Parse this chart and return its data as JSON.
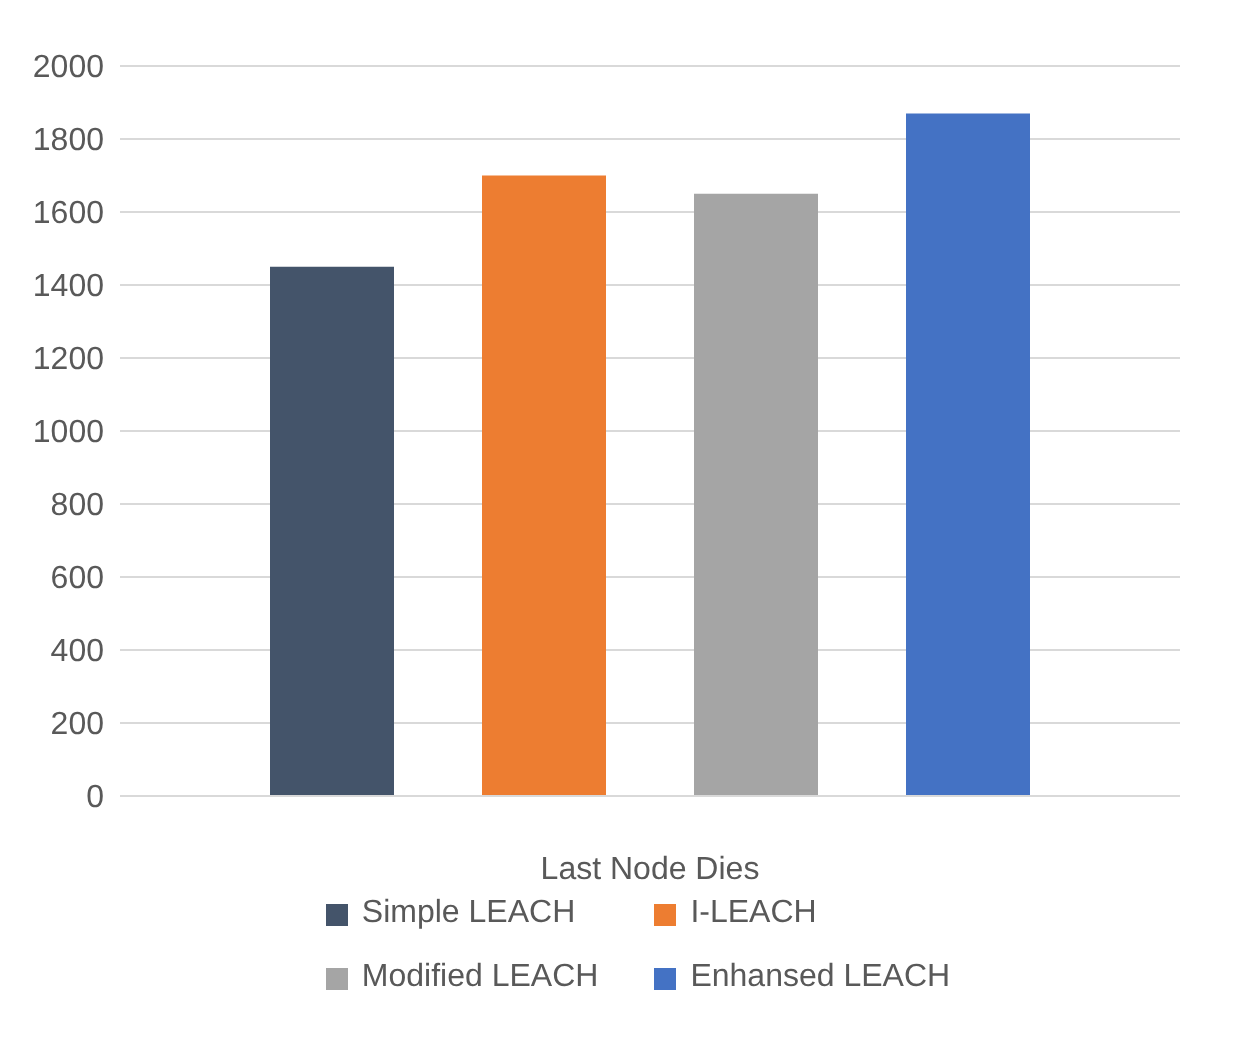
{
  "chart_data": {
    "type": "bar",
    "categories": [
      "Last Node Dies"
    ],
    "series": [
      {
        "name": "Simple LEACH",
        "color": "#44546a",
        "values": [
          1450
        ]
      },
      {
        "name": "I-LEACH",
        "color": "#ed7d31",
        "values": [
          1700
        ]
      },
      {
        "name": "Modified LEACH",
        "color": "#a5a5a5",
        "values": [
          1650
        ]
      },
      {
        "name": "Enhansed LEACH",
        "color": "#4472c4",
        "values": [
          1870
        ]
      }
    ],
    "ylim": [
      0,
      2000
    ],
    "yticks": [
      0,
      200,
      400,
      600,
      800,
      1000,
      1200,
      1400,
      1600,
      1800,
      2000
    ],
    "grid": "y",
    "legend": "bottom"
  }
}
